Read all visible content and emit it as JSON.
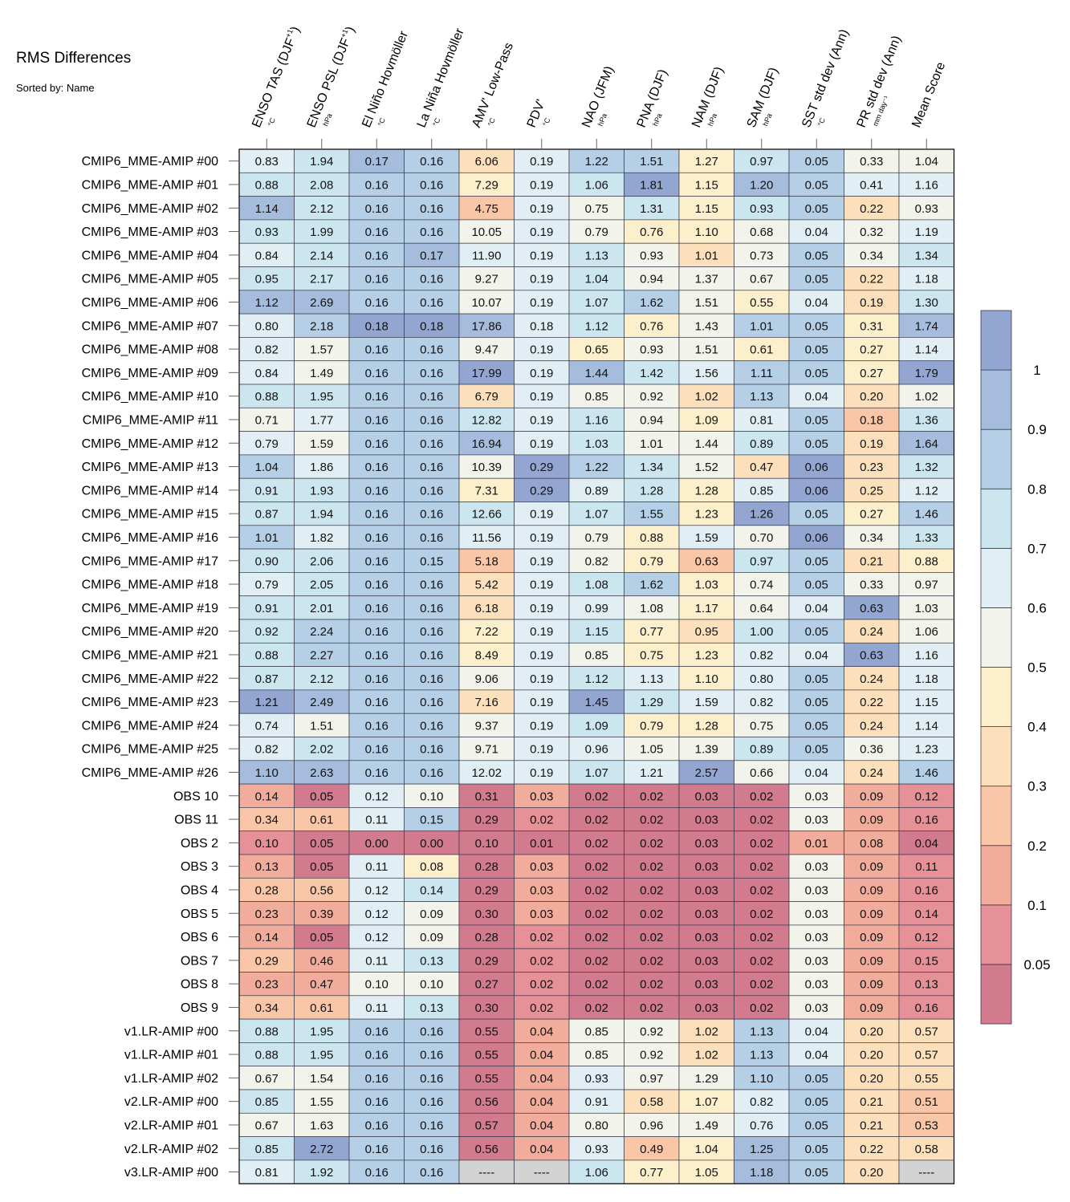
{
  "title": "RMS Differences",
  "subtitle": "Sorted by: Name",
  "chart_data": {
    "type": "heatmap",
    "columns": [
      {
        "label": "ENSO TAS (DJF",
        "sup": "+1",
        "close": ")",
        "unit": "°C"
      },
      {
        "label": "ENSO PSL (DJF",
        "sup": "+1",
        "close": ")",
        "unit": "hPa"
      },
      {
        "label": "El Niño Hovmöller",
        "sup": "",
        "close": "",
        "unit": "°C"
      },
      {
        "label": "La Niña Hovmöller",
        "sup": "",
        "close": "",
        "unit": "°C"
      },
      {
        "label": "AMV' Low-Pass",
        "sup": "",
        "close": "",
        "unit": "°C"
      },
      {
        "label": "PDV'",
        "sup": "",
        "close": "",
        "unit": "°C"
      },
      {
        "label": "NAO (JFM)",
        "sup": "",
        "close": "",
        "unit": "hPa"
      },
      {
        "label": "PNA (DJF)",
        "sup": "",
        "close": "",
        "unit": "hPa"
      },
      {
        "label": "NAM (DJF)",
        "sup": "",
        "close": "",
        "unit": "hPa"
      },
      {
        "label": "SAM (DJF)",
        "sup": "",
        "close": "",
        "unit": "hPa"
      },
      {
        "label": "SST std dev (Ann)",
        "sup": "",
        "close": "",
        "unit": "°C"
      },
      {
        "label": "PR std dev (Ann)",
        "sup": "",
        "close": "",
        "unit": "mm day⁻¹"
      },
      {
        "label": "Mean Score",
        "sup": "",
        "close": "",
        "unit": ""
      }
    ],
    "rows": [
      {
        "name": "CMIP6_MME-AMIP  #00",
        "values": [
          "0.83",
          "1.94",
          "0.17",
          "0.16",
          "6.06",
          "0.19",
          "1.22",
          "1.51",
          "1.27",
          "0.97",
          "0.05",
          "0.33",
          "1.04"
        ]
      },
      {
        "name": "CMIP6_MME-AMIP  #01",
        "values": [
          "0.88",
          "2.08",
          "0.16",
          "0.16",
          "7.29",
          "0.19",
          "1.06",
          "1.81",
          "1.15",
          "1.20",
          "0.05",
          "0.41",
          "1.16"
        ]
      },
      {
        "name": "CMIP6_MME-AMIP  #02",
        "values": [
          "1.14",
          "2.12",
          "0.16",
          "0.16",
          "4.75",
          "0.19",
          "0.75",
          "1.31",
          "1.15",
          "0.93",
          "0.05",
          "0.22",
          "0.93"
        ]
      },
      {
        "name": "CMIP6_MME-AMIP  #03",
        "values": [
          "0.93",
          "1.99",
          "0.16",
          "0.16",
          "10.05",
          "0.19",
          "0.79",
          "0.76",
          "1.10",
          "0.68",
          "0.04",
          "0.32",
          "1.19"
        ]
      },
      {
        "name": "CMIP6_MME-AMIP  #04",
        "values": [
          "0.84",
          "2.14",
          "0.16",
          "0.17",
          "11.90",
          "0.19",
          "1.13",
          "0.93",
          "1.01",
          "0.73",
          "0.05",
          "0.34",
          "1.34"
        ]
      },
      {
        "name": "CMIP6_MME-AMIP  #05",
        "values": [
          "0.95",
          "2.17",
          "0.16",
          "0.16",
          "9.27",
          "0.19",
          "1.04",
          "0.94",
          "1.37",
          "0.67",
          "0.05",
          "0.22",
          "1.18"
        ]
      },
      {
        "name": "CMIP6_MME-AMIP  #06",
        "values": [
          "1.12",
          "2.69",
          "0.16",
          "0.16",
          "10.07",
          "0.19",
          "1.07",
          "1.62",
          "1.51",
          "0.55",
          "0.04",
          "0.19",
          "1.30"
        ]
      },
      {
        "name": "CMIP6_MME-AMIP  #07",
        "values": [
          "0.80",
          "2.18",
          "0.18",
          "0.18",
          "17.86",
          "0.18",
          "1.12",
          "0.76",
          "1.43",
          "1.01",
          "0.05",
          "0.31",
          "1.74"
        ]
      },
      {
        "name": "CMIP6_MME-AMIP  #08",
        "values": [
          "0.82",
          "1.57",
          "0.16",
          "0.16",
          "9.47",
          "0.19",
          "0.65",
          "0.93",
          "1.51",
          "0.61",
          "0.05",
          "0.27",
          "1.14"
        ]
      },
      {
        "name": "CMIP6_MME-AMIP  #09",
        "values": [
          "0.84",
          "1.49",
          "0.16",
          "0.16",
          "17.99",
          "0.19",
          "1.44",
          "1.42",
          "1.56",
          "1.11",
          "0.05",
          "0.27",
          "1.79"
        ]
      },
      {
        "name": "CMIP6_MME-AMIP  #10",
        "values": [
          "0.88",
          "1.95",
          "0.16",
          "0.16",
          "6.79",
          "0.19",
          "0.85",
          "0.92",
          "1.02",
          "1.13",
          "0.04",
          "0.20",
          "1.02"
        ]
      },
      {
        "name": "CMIP6_MME-AMIP  #11",
        "values": [
          "0.71",
          "1.77",
          "0.16",
          "0.16",
          "12.82",
          "0.19",
          "1.16",
          "0.94",
          "1.09",
          "0.81",
          "0.05",
          "0.18",
          "1.36"
        ]
      },
      {
        "name": "CMIP6_MME-AMIP  #12",
        "values": [
          "0.79",
          "1.59",
          "0.16",
          "0.16",
          "16.94",
          "0.19",
          "1.03",
          "1.01",
          "1.44",
          "0.89",
          "0.05",
          "0.19",
          "1.64"
        ]
      },
      {
        "name": "CMIP6_MME-AMIP  #13",
        "values": [
          "1.04",
          "1.86",
          "0.16",
          "0.16",
          "10.39",
          "0.29",
          "1.22",
          "1.34",
          "1.52",
          "0.47",
          "0.06",
          "0.23",
          "1.32"
        ]
      },
      {
        "name": "CMIP6_MME-AMIP  #14",
        "values": [
          "0.91",
          "1.93",
          "0.16",
          "0.16",
          "7.31",
          "0.29",
          "0.89",
          "1.28",
          "1.28",
          "0.85",
          "0.06",
          "0.25",
          "1.12"
        ]
      },
      {
        "name": "CMIP6_MME-AMIP  #15",
        "values": [
          "0.87",
          "1.94",
          "0.16",
          "0.16",
          "12.66",
          "0.19",
          "1.07",
          "1.55",
          "1.23",
          "1.26",
          "0.05",
          "0.27",
          "1.46"
        ]
      },
      {
        "name": "CMIP6_MME-AMIP  #16",
        "values": [
          "1.01",
          "1.82",
          "0.16",
          "0.16",
          "11.56",
          "0.19",
          "0.79",
          "0.88",
          "1.59",
          "0.70",
          "0.06",
          "0.34",
          "1.33"
        ]
      },
      {
        "name": "CMIP6_MME-AMIP  #17",
        "values": [
          "0.90",
          "2.06",
          "0.16",
          "0.15",
          "5.18",
          "0.19",
          "0.82",
          "0.79",
          "0.63",
          "0.97",
          "0.05",
          "0.21",
          "0.88"
        ]
      },
      {
        "name": "CMIP6_MME-AMIP  #18",
        "values": [
          "0.79",
          "2.05",
          "0.16",
          "0.16",
          "5.42",
          "0.19",
          "1.08",
          "1.62",
          "1.03",
          "0.74",
          "0.05",
          "0.33",
          "0.97"
        ]
      },
      {
        "name": "CMIP6_MME-AMIP  #19",
        "values": [
          "0.91",
          "2.01",
          "0.16",
          "0.16",
          "6.18",
          "0.19",
          "0.99",
          "1.08",
          "1.17",
          "0.64",
          "0.04",
          "0.63",
          "1.03"
        ]
      },
      {
        "name": "CMIP6_MME-AMIP  #20",
        "values": [
          "0.92",
          "2.24",
          "0.16",
          "0.16",
          "7.22",
          "0.19",
          "1.15",
          "0.77",
          "0.95",
          "1.00",
          "0.05",
          "0.24",
          "1.06"
        ]
      },
      {
        "name": "CMIP6_MME-AMIP  #21",
        "values": [
          "0.88",
          "2.27",
          "0.16",
          "0.16",
          "8.49",
          "0.19",
          "0.85",
          "0.75",
          "1.23",
          "0.82",
          "0.04",
          "0.63",
          "1.16"
        ]
      },
      {
        "name": "CMIP6_MME-AMIP  #22",
        "values": [
          "0.87",
          "2.12",
          "0.16",
          "0.16",
          "9.06",
          "0.19",
          "1.12",
          "1.13",
          "1.10",
          "0.80",
          "0.05",
          "0.24",
          "1.18"
        ]
      },
      {
        "name": "CMIP6_MME-AMIP  #23",
        "values": [
          "1.21",
          "2.49",
          "0.16",
          "0.16",
          "7.16",
          "0.19",
          "1.45",
          "1.29",
          "1.59",
          "0.82",
          "0.05",
          "0.22",
          "1.15"
        ]
      },
      {
        "name": "CMIP6_MME-AMIP  #24",
        "values": [
          "0.74",
          "1.51",
          "0.16",
          "0.16",
          "9.37",
          "0.19",
          "1.09",
          "0.79",
          "1.28",
          "0.75",
          "0.05",
          "0.24",
          "1.14"
        ]
      },
      {
        "name": "CMIP6_MME-AMIP  #25",
        "values": [
          "0.82",
          "2.02",
          "0.16",
          "0.16",
          "9.71",
          "0.19",
          "0.96",
          "1.05",
          "1.39",
          "0.89",
          "0.05",
          "0.36",
          "1.23"
        ]
      },
      {
        "name": "CMIP6_MME-AMIP  #26",
        "values": [
          "1.10",
          "2.63",
          "0.16",
          "0.16",
          "12.02",
          "0.19",
          "1.07",
          "1.21",
          "2.57",
          "0.66",
          "0.04",
          "0.24",
          "1.46"
        ]
      },
      {
        "name": "OBS 10",
        "values": [
          "0.14",
          "0.05",
          "0.12",
          "0.10",
          "0.31",
          "0.03",
          "0.02",
          "0.02",
          "0.03",
          "0.02",
          "0.03",
          "0.09",
          "0.12"
        ]
      },
      {
        "name": "OBS 11",
        "values": [
          "0.34",
          "0.61",
          "0.11",
          "0.15",
          "0.29",
          "0.02",
          "0.02",
          "0.02",
          "0.03",
          "0.02",
          "0.03",
          "0.09",
          "0.16"
        ]
      },
      {
        "name": "OBS 2",
        "values": [
          "0.10",
          "0.05",
          "0.00",
          "0.00",
          "0.10",
          "0.01",
          "0.02",
          "0.02",
          "0.03",
          "0.02",
          "0.01",
          "0.08",
          "0.04"
        ]
      },
      {
        "name": "OBS 3",
        "values": [
          "0.13",
          "0.05",
          "0.11",
          "0.08",
          "0.28",
          "0.03",
          "0.02",
          "0.02",
          "0.03",
          "0.02",
          "0.03",
          "0.09",
          "0.11"
        ]
      },
      {
        "name": "OBS 4",
        "values": [
          "0.28",
          "0.56",
          "0.12",
          "0.14",
          "0.29",
          "0.03",
          "0.02",
          "0.02",
          "0.03",
          "0.02",
          "0.03",
          "0.09",
          "0.16"
        ]
      },
      {
        "name": "OBS 5",
        "values": [
          "0.23",
          "0.39",
          "0.12",
          "0.09",
          "0.30",
          "0.03",
          "0.02",
          "0.02",
          "0.03",
          "0.02",
          "0.03",
          "0.09",
          "0.14"
        ]
      },
      {
        "name": "OBS 6",
        "values": [
          "0.14",
          "0.05",
          "0.12",
          "0.09",
          "0.28",
          "0.02",
          "0.02",
          "0.02",
          "0.03",
          "0.02",
          "0.03",
          "0.09",
          "0.12"
        ]
      },
      {
        "name": "OBS 7",
        "values": [
          "0.29",
          "0.46",
          "0.11",
          "0.13",
          "0.29",
          "0.02",
          "0.02",
          "0.02",
          "0.03",
          "0.02",
          "0.03",
          "0.09",
          "0.15"
        ]
      },
      {
        "name": "OBS 8",
        "values": [
          "0.23",
          "0.47",
          "0.10",
          "0.10",
          "0.27",
          "0.02",
          "0.02",
          "0.02",
          "0.03",
          "0.02",
          "0.03",
          "0.09",
          "0.13"
        ]
      },
      {
        "name": "OBS 9",
        "values": [
          "0.34",
          "0.61",
          "0.11",
          "0.13",
          "0.30",
          "0.02",
          "0.02",
          "0.02",
          "0.03",
          "0.02",
          "0.03",
          "0.09",
          "0.16"
        ]
      },
      {
        "name": "v1.LR-AMIP  #00",
        "values": [
          "0.88",
          "1.95",
          "0.16",
          "0.16",
          "0.55",
          "0.04",
          "0.85",
          "0.92",
          "1.02",
          "1.13",
          "0.04",
          "0.20",
          "0.57"
        ]
      },
      {
        "name": "v1.LR-AMIP  #01",
        "values": [
          "0.88",
          "1.95",
          "0.16",
          "0.16",
          "0.55",
          "0.04",
          "0.85",
          "0.92",
          "1.02",
          "1.13",
          "0.04",
          "0.20",
          "0.57"
        ]
      },
      {
        "name": "v1.LR-AMIP  #02",
        "values": [
          "0.67",
          "1.54",
          "0.16",
          "0.16",
          "0.55",
          "0.04",
          "0.93",
          "0.97",
          "1.29",
          "1.10",
          "0.05",
          "0.20",
          "0.55"
        ]
      },
      {
        "name": "v2.LR-AMIP  #00",
        "values": [
          "0.85",
          "1.55",
          "0.16",
          "0.16",
          "0.56",
          "0.04",
          "0.91",
          "0.58",
          "1.07",
          "0.82",
          "0.05",
          "0.21",
          "0.51"
        ]
      },
      {
        "name": "v2.LR-AMIP  #01",
        "values": [
          "0.67",
          "1.63",
          "0.16",
          "0.16",
          "0.57",
          "0.04",
          "0.80",
          "0.96",
          "1.49",
          "0.76",
          "0.05",
          "0.21",
          "0.53"
        ]
      },
      {
        "name": "v2.LR-AMIP  #02",
        "values": [
          "0.85",
          "2.72",
          "0.16",
          "0.16",
          "0.56",
          "0.04",
          "0.93",
          "0.49",
          "1.04",
          "1.25",
          "0.05",
          "0.22",
          "0.58"
        ]
      },
      {
        "name": "v3.LR-AMIP  #00",
        "values": [
          "0.81",
          "1.92",
          "0.16",
          "0.16",
          "----",
          "----",
          "1.06",
          "0.77",
          "1.05",
          "1.18",
          "0.05",
          "0.20",
          "----"
        ]
      }
    ],
    "colorbar": {
      "thresholds": [
        0.05,
        0.1,
        0.2,
        0.3,
        0.4,
        0.5,
        0.6,
        0.7,
        0.8,
        0.9,
        1
      ],
      "labels": [
        "0.05",
        "0.1",
        "0.2",
        "0.3",
        "0.4",
        "0.5",
        "0.6",
        "0.7",
        "0.8",
        "0.9",
        "1"
      ],
      "colors": [
        "#d27a8e",
        "#e69197",
        "#f2ac9c",
        "#f9c7a8",
        "#fce0bb",
        "#fcf0cc",
        "#f2f3ea",
        "#e1eff5",
        "#cce6f0",
        "#b4cfe6",
        "#a5bcdd",
        "#93a6d1"
      ],
      "missing_color": "#d3d3d3"
    }
  }
}
